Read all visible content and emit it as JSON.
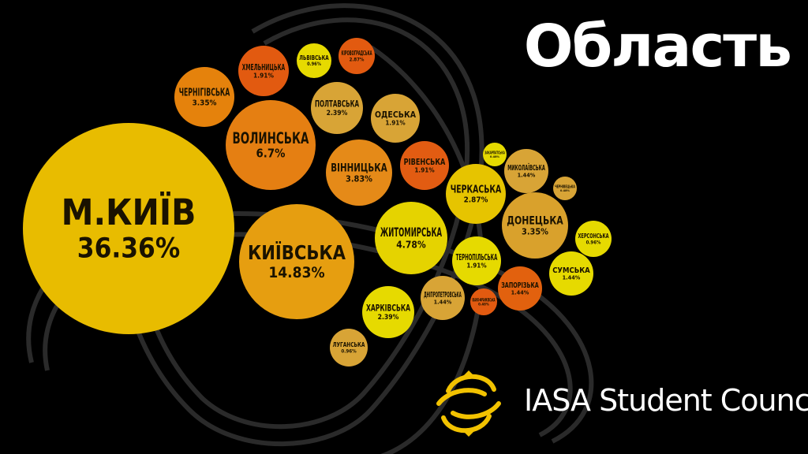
{
  "title": "Область",
  "brand": {
    "name": "IASA Student Council"
  },
  "colors": {
    "background": "#000000",
    "title": "#ffffff",
    "text_on_bubble": "#1a1200"
  },
  "chart_data": {
    "type": "bubble",
    "title": "Область",
    "unit": "%",
    "items": [
      {
        "label": "М.КИЇВ",
        "value": 36.36,
        "display": "36.36%",
        "color": "#E8BC00"
      },
      {
        "label": "КИЇВСЬКА",
        "value": 14.83,
        "display": "14.83%",
        "color": "#E69E10"
      },
      {
        "label": "ВОЛИНСЬКА",
        "value": 6.7,
        "display": "6.7%",
        "color": "#E57F12"
      },
      {
        "label": "ЖИТОМИРСЬКА",
        "value": 4.78,
        "display": "4.78%",
        "color": "#E5D300"
      },
      {
        "label": "ВІННИЦЬКА",
        "value": 3.83,
        "display": "3.83%",
        "color": "#E58A18"
      },
      {
        "label": "ЧЕРНІГІВСЬКА",
        "value": 3.35,
        "display": "3.35%",
        "color": "#E5820C"
      },
      {
        "label": "ДОНЕЦЬКА",
        "value": 3.35,
        "display": "3.35%",
        "color": "#D9A12C"
      },
      {
        "label": "ЧЕРКАСЬКА",
        "value": 2.87,
        "display": "2.87%",
        "color": "#E6C400"
      },
      {
        "label": "ПОЛТАВСЬКА",
        "value": 2.39,
        "display": "2.39%",
        "color": "#D8A436"
      },
      {
        "label": "ХАРКІВСЬКА",
        "value": 2.39,
        "display": "2.39%",
        "color": "#E6DA00"
      },
      {
        "label": "ХМЕЛЬНИЦЬКА",
        "value": 1.91,
        "display": "1.91%",
        "color": "#E25A10"
      },
      {
        "label": "ОДЕСЬКА",
        "value": 1.91,
        "display": "1.91%",
        "color": "#D8A436"
      },
      {
        "label": "РІВЕНСЬКА",
        "value": 1.91,
        "display": "1.91%",
        "color": "#E25C12"
      },
      {
        "label": "ТЕРНОПІЛЬСЬКА",
        "value": 1.91,
        "display": "1.91%",
        "color": "#E6DA00"
      },
      {
        "label": "МИКОЛАЇВСЬКА",
        "value": 1.44,
        "display": "1.44%",
        "color": "#D8A436"
      },
      {
        "label": "ДНІПРОПЕТРОВСЬКА",
        "value": 1.44,
        "display": "1.44%",
        "color": "#D8A436"
      },
      {
        "label": "ЗАПОРІЗЬКА",
        "value": 1.44,
        "display": "1.44%",
        "color": "#E2610E"
      },
      {
        "label": "СУМСЬКА",
        "value": 1.44,
        "display": "1.44%",
        "color": "#E6DA00"
      },
      {
        "label": "ЛЬВІВСЬКА",
        "value": 0.96,
        "display": "0.96%",
        "color": "#E6DA00"
      },
      {
        "label": "ХЕРСОНСЬКА",
        "value": 0.96,
        "display": "0.96%",
        "color": "#E6DA00"
      },
      {
        "label": "ЛУГАНСЬКА",
        "value": 0.96,
        "display": "0.96%",
        "color": "#D8A436"
      },
      {
        "label": "КІРОВОГРАДСЬКА",
        "value": 2.87,
        "display": "2.87%",
        "color": "#E25A10"
      },
      {
        "label": "ЗАКАРПАТСЬКА",
        "value": 0.48,
        "display": "0.48%",
        "color": "#E6DA00"
      },
      {
        "label": "ЧЕРНІВЕЦЬКА",
        "value": 0.48,
        "display": "0.48%",
        "color": "#D8A436"
      },
      {
        "label": "ІВАНО-ФРАНКІВСЬКА",
        "value": 0.48,
        "display": "0.48%",
        "color": "#E25A10"
      }
    ]
  }
}
